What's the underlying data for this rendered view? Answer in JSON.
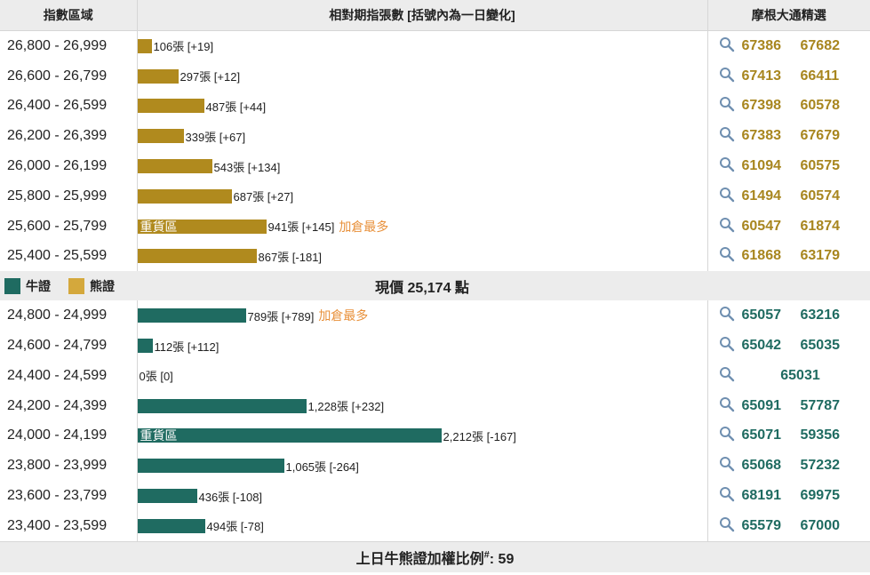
{
  "header": {
    "col_range": "指數區域",
    "col_bar": "相對期指張數 [括號內為一日變化]",
    "col_codes": "摩根大通精選"
  },
  "colors": {
    "bear": "#b08a1e",
    "bull": "#1f6b61",
    "accent": "#e8903a",
    "bull_legend": "#1f6b61",
    "bear_legend": "#d4a83c"
  },
  "max_contracts": 2212,
  "bear_rows": [
    {
      "range": "26,800 - 26,999",
      "contracts": 106,
      "label": "106張 [+19]",
      "heavy": "",
      "note": "",
      "codes": [
        "67386",
        "67682"
      ]
    },
    {
      "range": "26,600 - 26,799",
      "contracts": 297,
      "label": "297張 [+12]",
      "heavy": "",
      "note": "",
      "codes": [
        "67413",
        "66411"
      ]
    },
    {
      "range": "26,400 - 26,599",
      "contracts": 487,
      "label": "487張 [+44]",
      "heavy": "",
      "note": "",
      "codes": [
        "67398",
        "60578"
      ]
    },
    {
      "range": "26,200 - 26,399",
      "contracts": 339,
      "label": "339張 [+67]",
      "heavy": "",
      "note": "",
      "codes": [
        "67383",
        "67679"
      ]
    },
    {
      "range": "26,000 - 26,199",
      "contracts": 543,
      "label": "543張 [+134]",
      "heavy": "",
      "note": "",
      "codes": [
        "61094",
        "60575"
      ]
    },
    {
      "range": "25,800 - 25,999",
      "contracts": 687,
      "label": "687張 [+27]",
      "heavy": "",
      "note": "",
      "codes": [
        "61494",
        "60574"
      ]
    },
    {
      "range": "25,600 - 25,799",
      "contracts": 941,
      "label": "941張 [+145]",
      "heavy": "重貨區",
      "note": "加倉最多",
      "codes": [
        "60547",
        "61874"
      ]
    },
    {
      "range": "25,400 - 25,599",
      "contracts": 867,
      "label": "867張 [-181]",
      "heavy": "",
      "note": "",
      "codes": [
        "61868",
        "63179"
      ]
    }
  ],
  "legend": {
    "bull": "牛證",
    "bear": "熊證"
  },
  "spot": {
    "text": "現價 25,174 點"
  },
  "bull_rows": [
    {
      "range": "24,800 - 24,999",
      "contracts": 789,
      "label": "789張 [+789]",
      "heavy": "",
      "note": "加倉最多",
      "codes": [
        "65057",
        "63216"
      ]
    },
    {
      "range": "24,600 - 24,799",
      "contracts": 112,
      "label": "112張 [+112]",
      "heavy": "",
      "note": "",
      "codes": [
        "65042",
        "65035"
      ]
    },
    {
      "range": "24,400 - 24,599",
      "contracts": 0,
      "label": "0張 [0]",
      "heavy": "",
      "note": "",
      "codes": [
        "65031"
      ]
    },
    {
      "range": "24,200 - 24,399",
      "contracts": 1228,
      "label": "1,228張 [+232]",
      "heavy": "",
      "note": "",
      "codes": [
        "65091",
        "57787"
      ]
    },
    {
      "range": "24,000 - 24,199",
      "contracts": 2212,
      "label": "2,212張 [-167]",
      "heavy": "重貨區",
      "note": "",
      "codes": [
        "65071",
        "59356"
      ]
    },
    {
      "range": "23,800 - 23,999",
      "contracts": 1065,
      "label": "1,065張 [-264]",
      "heavy": "",
      "note": "",
      "codes": [
        "65068",
        "57232"
      ]
    },
    {
      "range": "23,600 - 23,799",
      "contracts": 436,
      "label": "436張 [-108]",
      "heavy": "",
      "note": "",
      "codes": [
        "68191",
        "69975"
      ]
    },
    {
      "range": "23,400 - 23,599",
      "contracts": 494,
      "label": "494張 [-78]",
      "heavy": "",
      "note": "",
      "codes": [
        "65579",
        "67000"
      ]
    }
  ],
  "footer": {
    "text": "上日牛熊證加權比例",
    "mark": "#",
    "value": ": 59"
  }
}
